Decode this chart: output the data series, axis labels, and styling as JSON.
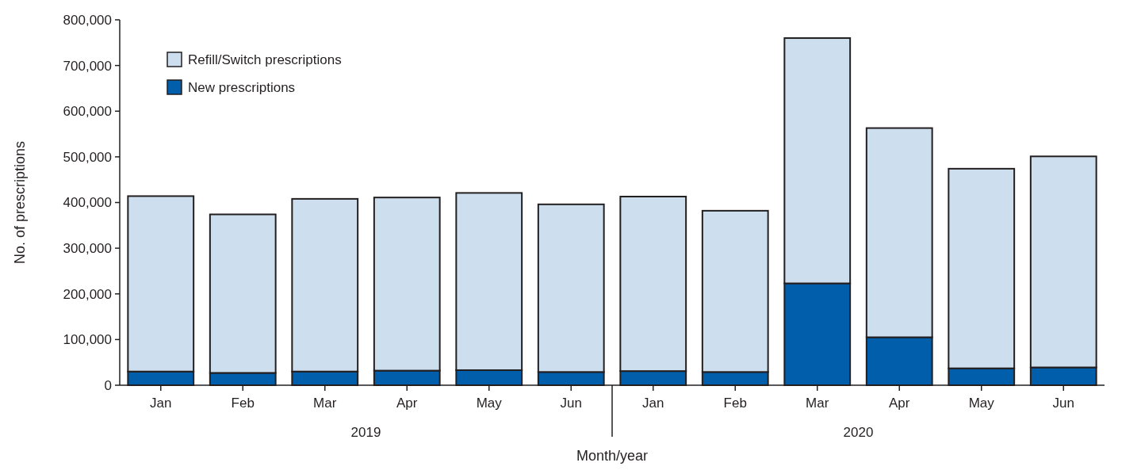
{
  "chart_data": {
    "type": "bar",
    "stacked": true,
    "xlabel": "Month/year",
    "ylabel": "No. of prescriptions",
    "categories": [
      "Jan",
      "Feb",
      "Mar",
      "Apr",
      "May",
      "Jun",
      "Jan",
      "Feb",
      "Mar",
      "Apr",
      "May",
      "Jun"
    ],
    "series": [
      {
        "name": "New prescriptions",
        "color": "#005eaa",
        "values": [
          30000,
          27000,
          30000,
          32000,
          33000,
          29000,
          31000,
          29000,
          223000,
          105000,
          37000,
          39000
        ]
      },
      {
        "name": "Refill/Switch prescriptions",
        "color": "#cddfee",
        "values": [
          384000,
          347000,
          378000,
          379000,
          388000,
          367000,
          382000,
          353000,
          537000,
          458000,
          437000,
          462000
        ]
      }
    ],
    "ylim": [
      0,
      800000
    ],
    "yticks": [
      {
        "value": 0,
        "label": "0"
      },
      {
        "value": 100000,
        "label": "100,000"
      },
      {
        "value": 200000,
        "label": "200,000"
      },
      {
        "value": 300000,
        "label": "300,000"
      },
      {
        "value": 400000,
        "label": "400,000"
      },
      {
        "value": 500000,
        "label": "500,000"
      },
      {
        "value": 600000,
        "label": "600,000"
      },
      {
        "value": 700000,
        "label": "700,000"
      },
      {
        "value": 800000,
        "label": "800,000"
      }
    ],
    "annotations": [
      "2019",
      "2020"
    ],
    "legend": "top left",
    "grid": false
  }
}
